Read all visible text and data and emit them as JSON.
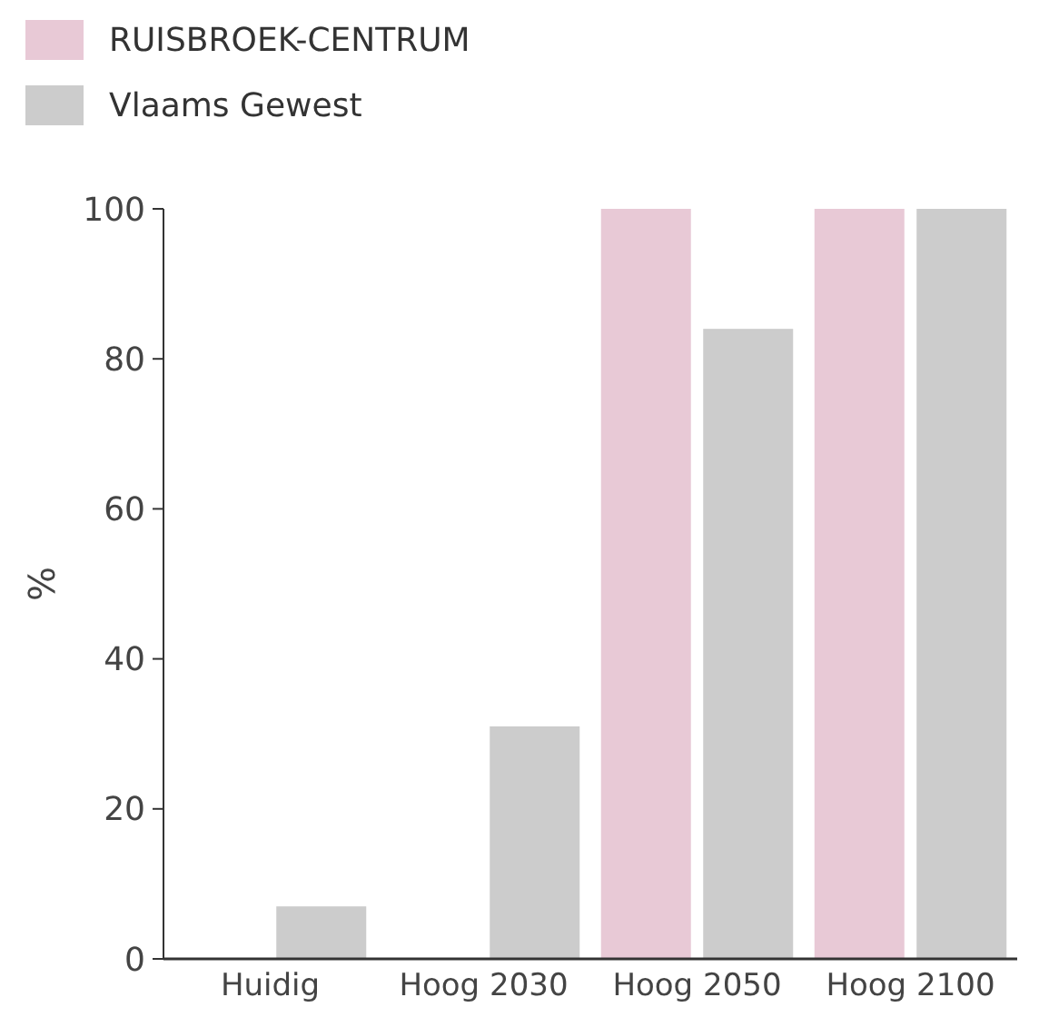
{
  "chart_data": {
    "type": "bar",
    "ylabel": "%",
    "categories": [
      "Huidig",
      "Hoog 2030",
      "Hoog 2050",
      "Hoog 2100"
    ],
    "series": [
      {
        "name": "RUISBROEK-CENTRUM",
        "color": "#e8c9d6",
        "values": [
          0,
          0,
          100,
          100
        ]
      },
      {
        "name": "Vlaams Gewest",
        "color": "#cccccc",
        "values": [
          7,
          31,
          84,
          100
        ]
      }
    ],
    "ylim": [
      0,
      100
    ],
    "yticks": [
      0,
      20,
      40,
      60,
      80,
      100
    ],
    "grid": false,
    "legend": "top left"
  }
}
